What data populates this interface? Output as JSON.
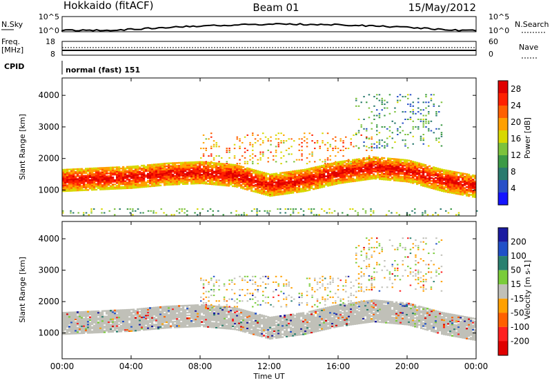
{
  "header": {
    "station": "Hokkaido (fitACF)",
    "beam": "Beam 01",
    "date": "15/May/2012"
  },
  "summary_panels": {
    "nsky": {
      "label": "N.Sky",
      "top_tick": "10^5",
      "bottom_tick": "10^0"
    },
    "nsearch": {
      "label": "N.Search",
      "top_tick": "10^5",
      "bottom_tick": "10^0"
    },
    "freq": {
      "label_line1": "Freq.",
      "label_line2": "[MHz]",
      "top_tick": "18",
      "bottom_tick": "8"
    },
    "nave": {
      "label": "Nave",
      "top_tick": "60",
      "bottom_tick": "0"
    },
    "cpid": {
      "label": "CPID",
      "value": "normal (fast) 151"
    }
  },
  "chart_data": [
    {
      "type": "heatmap",
      "title": "",
      "xlabel": "Time UT",
      "ylabel": "Slant Range [km]",
      "x_ticks": [
        "00:00",
        "04:00",
        "08:00",
        "12:00",
        "16:00",
        "20:00",
        "00:00"
      ],
      "x_range_hours": [
        0,
        24
      ],
      "y_ticks": [
        "1000",
        "2000",
        "3000",
        "4000"
      ],
      "y_range_km": [
        180,
        4550
      ],
      "colorbar": {
        "label": "Power [dB]",
        "ticks": [
          "4",
          "8",
          "12",
          "16",
          "20",
          "24",
          "28"
        ],
        "range": [
          0,
          30
        ],
        "colors": [
          "#1414ff",
          "#2850c8",
          "#2a7a6e",
          "#3c9a46",
          "#7cc23c",
          "#d8d800",
          "#ffa000",
          "#ff6000",
          "#ff2000",
          "#e00000"
        ]
      },
      "features": [
        {
          "name": "main scatter band",
          "start_hour": 0,
          "end_hour": 24,
          "center_km": [
            1300,
            1350,
            1400,
            1500,
            1550,
            1450,
            1150,
            1300,
            1550,
            1700,
            1600,
            1300,
            1100
          ],
          "width_km": 700,
          "power_db": 26
        },
        {
          "name": "upper echoes",
          "start_hour": 8,
          "end_hour": 18,
          "range_km": [
            1800,
            2800
          ],
          "power_db": 20
        },
        {
          "name": "far range echoes",
          "start_hour": 17,
          "end_hour": 22,
          "range_km": [
            2300,
            4000
          ],
          "power_db": 10
        },
        {
          "name": "near range clutter",
          "start_hour": 0,
          "end_hour": 24,
          "range_km": [
            180,
            400
          ],
          "power_db": 12
        }
      ]
    },
    {
      "type": "heatmap",
      "title": "",
      "xlabel": "Time UT",
      "ylabel": "Slant Range [km]",
      "x_ticks": [
        "00:00",
        "04:00",
        "08:00",
        "12:00",
        "16:00",
        "20:00",
        "00:00"
      ],
      "x_range_hours": [
        0,
        24
      ],
      "y_ticks": [
        "1000",
        "2000",
        "3000",
        "4000"
      ],
      "y_range_km": [
        180,
        4550
      ],
      "colorbar": {
        "label": "Velocity [m s-1]",
        "ticks": [
          "200",
          "100",
          "50",
          "15",
          "-15",
          "-50",
          "-100",
          "-200"
        ],
        "range": [
          -250,
          250
        ],
        "colors": [
          "#1a1aa0",
          "#2050c8",
          "#2a8070",
          "#7acc3a",
          "#c0c0b8",
          "#ffa000",
          "#ff6000",
          "#ff2020",
          "#e00000"
        ]
      },
      "features": [
        {
          "name": "ground scatter band",
          "start_hour": 0,
          "end_hour": 24,
          "center_km": [
            1300,
            1350,
            1400,
            1500,
            1550,
            1450,
            1150,
            1300,
            1550,
            1700,
            1600,
            1300,
            1100
          ],
          "width_km": 700,
          "velocity_ms": 0
        },
        {
          "name": "ionospheric echoes",
          "start_hour": 8,
          "end_hour": 18,
          "range_km": [
            1800,
            2800
          ],
          "velocity_ms": -40
        },
        {
          "name": "far range echoes",
          "start_hour": 17,
          "end_hour": 22,
          "range_km": [
            2300,
            4000
          ],
          "velocity_ms": 40
        }
      ]
    }
  ],
  "colors": {
    "axis": "#000000",
    "background": "#ffffff",
    "ground_scatter": "#c0c0b8"
  }
}
